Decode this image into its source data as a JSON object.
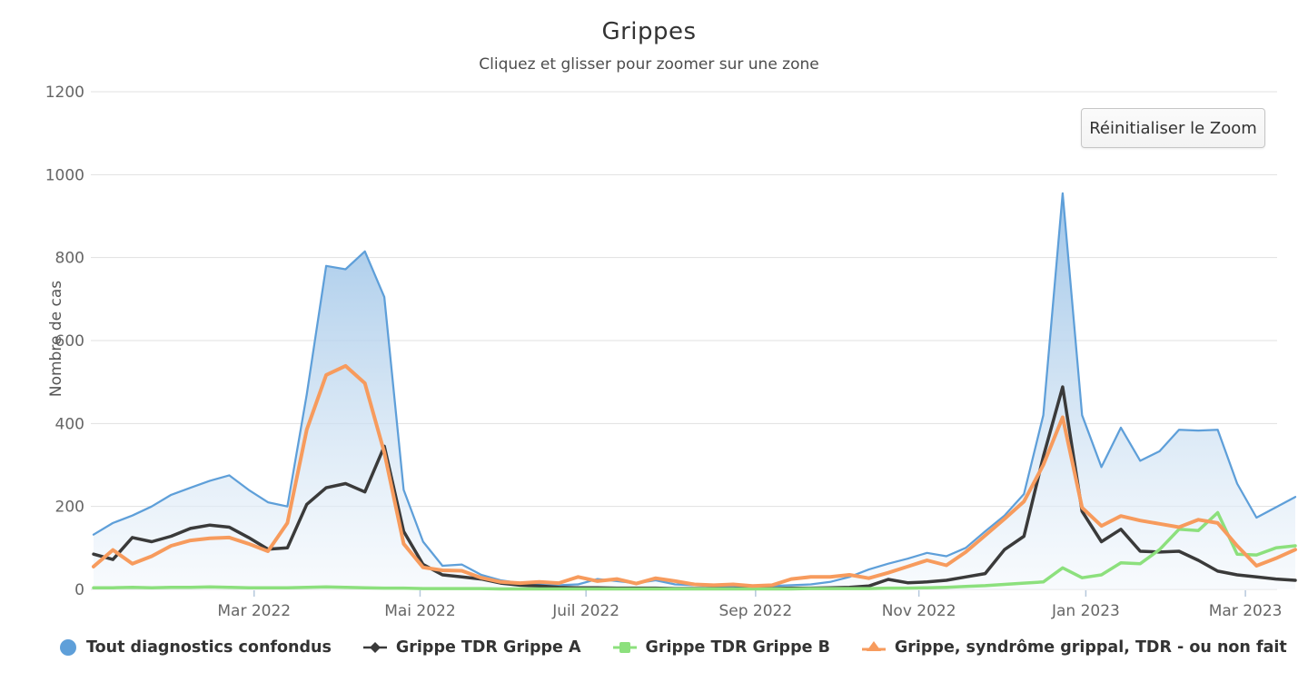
{
  "header": {
    "title": "Grippes",
    "subtitle": "Cliquez et glisser pour zoomer sur une zone"
  },
  "toolbar": {
    "reset_zoom_label": "Réinitialiser le Zoom"
  },
  "colors": {
    "grid": "#e1e1e1",
    "axis_tick": "#b6c8dc",
    "tick_label": "#666666",
    "title_text": "#333333",
    "subtitle_text": "#4d4d4d"
  },
  "chart_data": {
    "type": "area",
    "title": "Grippes",
    "xlabel": "",
    "ylabel": "Nombre de cas",
    "ylim": [
      0,
      1200
    ],
    "y_ticks": [
      0,
      200,
      400,
      600,
      800,
      1000,
      1200
    ],
    "x_tick_labels": [
      "Mar 2022",
      "Mai 2022",
      "Juil 2022",
      "Sep 2022",
      "Nov 2022",
      "Jan 2023",
      "Mar 2023"
    ],
    "grid": "horizontal",
    "legend_position": "bottom",
    "x": [
      "2022-01-03",
      "2022-01-10",
      "2022-01-17",
      "2022-01-24",
      "2022-01-31",
      "2022-02-07",
      "2022-02-14",
      "2022-02-21",
      "2022-02-28",
      "2022-03-07",
      "2022-03-14",
      "2022-03-21",
      "2022-03-28",
      "2022-04-04",
      "2022-04-11",
      "2022-04-18",
      "2022-04-25",
      "2022-05-02",
      "2022-05-09",
      "2022-05-16",
      "2022-05-23",
      "2022-05-30",
      "2022-06-06",
      "2022-06-13",
      "2022-06-20",
      "2022-06-27",
      "2022-07-04",
      "2022-07-11",
      "2022-07-18",
      "2022-07-25",
      "2022-08-01",
      "2022-08-08",
      "2022-08-15",
      "2022-08-22",
      "2022-08-29",
      "2022-09-05",
      "2022-09-12",
      "2022-09-19",
      "2022-09-26",
      "2022-10-03",
      "2022-10-10",
      "2022-10-17",
      "2022-10-24",
      "2022-10-31",
      "2022-11-07",
      "2022-11-14",
      "2022-11-21",
      "2022-11-28",
      "2022-12-05",
      "2022-12-12",
      "2022-12-19",
      "2022-12-26",
      "2023-01-02",
      "2023-01-09",
      "2023-01-16",
      "2023-01-23",
      "2023-01-30",
      "2023-02-06",
      "2023-02-13",
      "2023-02-20",
      "2023-02-27",
      "2023-03-06",
      "2023-03-13"
    ],
    "series": [
      {
        "name": "Tout diagnostics confondus",
        "type": "area",
        "marker": "circle",
        "color": "#5e9fd9",
        "fill_top": "#79afe1",
        "fill_bottom": "#f2f7fc",
        "values": [
          132,
          160,
          178,
          200,
          228,
          245,
          262,
          275,
          240,
          210,
          200,
          470,
          780,
          772,
          815,
          705,
          240,
          115,
          57,
          60,
          35,
          22,
          15,
          12,
          10,
          12,
          25,
          20,
          15,
          22,
          12,
          10,
          8,
          8,
          6,
          8,
          10,
          12,
          18,
          30,
          48,
          62,
          74,
          88,
          80,
          100,
          140,
          178,
          230,
          420,
          955,
          420,
          295,
          390,
          310,
          333,
          385,
          383,
          385,
          255,
          173,
          198,
          223
        ]
      },
      {
        "name": "Grippe TDR Grippe A",
        "type": "line",
        "marker": "diamond",
        "color": "#3a3a3a",
        "values": [
          85,
          72,
          125,
          115,
          128,
          147,
          155,
          150,
          125,
          97,
          100,
          205,
          245,
          255,
          235,
          345,
          140,
          60,
          35,
          30,
          25,
          15,
          10,
          8,
          5,
          4,
          4,
          3,
          3,
          3,
          2,
          2,
          2,
          2,
          2,
          2,
          3,
          3,
          4,
          5,
          8,
          24,
          16,
          18,
          22,
          30,
          38,
          96,
          128,
          320,
          488,
          188,
          115,
          145,
          92,
          90,
          92,
          70,
          44,
          35,
          30,
          25,
          22
        ]
      },
      {
        "name": "Grippe TDR Grippe B",
        "type": "line",
        "marker": "square",
        "color": "#8ce07d",
        "values": [
          4,
          4,
          5,
          4,
          5,
          5,
          6,
          5,
          4,
          4,
          4,
          5,
          6,
          5,
          4,
          3,
          3,
          2,
          2,
          2,
          2,
          1,
          1,
          1,
          1,
          1,
          1,
          1,
          1,
          1,
          1,
          1,
          1,
          1,
          1,
          1,
          1,
          2,
          2,
          2,
          2,
          3,
          3,
          4,
          5,
          7,
          9,
          12,
          15,
          18,
          52,
          28,
          35,
          64,
          62,
          96,
          145,
          142,
          185,
          85,
          83,
          100,
          105
        ]
      },
      {
        "name": "Grippe, syndrôme grippal, TDR - ou non fait",
        "type": "line",
        "marker": "triangle",
        "color": "#f79b5d",
        "values": [
          55,
          95,
          62,
          80,
          105,
          118,
          123,
          125,
          110,
          92,
          160,
          385,
          517,
          539,
          497,
          330,
          110,
          53,
          46,
          45,
          28,
          18,
          15,
          18,
          15,
          30,
          20,
          25,
          14,
          27,
          20,
          12,
          10,
          12,
          8,
          10,
          25,
          30,
          30,
          35,
          27,
          40,
          55,
          70,
          58,
          90,
          130,
          170,
          212,
          300,
          415,
          197,
          153,
          177,
          166,
          158,
          150,
          168,
          160,
          105,
          57,
          75,
          96
        ]
      }
    ]
  }
}
